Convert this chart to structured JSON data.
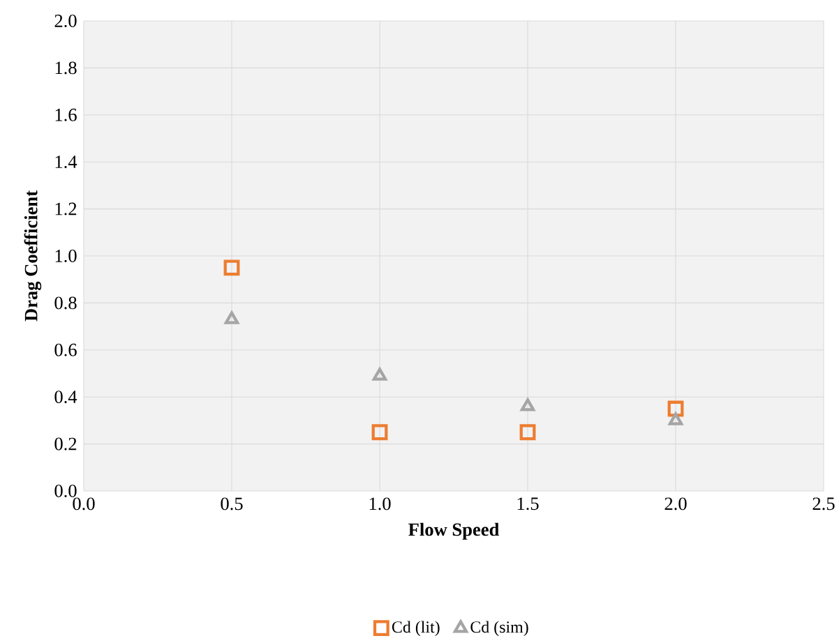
{
  "chart_data": {
    "type": "scatter",
    "xlabel": "Flow Speed",
    "ylabel": "Drag Coefficient",
    "x": [
      0.5,
      1.0,
      1.5,
      2.0
    ],
    "series": [
      {
        "name": "Cd (lit)",
        "color": "#ed7d31",
        "marker": "square",
        "values": [
          0.95,
          0.25,
          0.25,
          0.35
        ]
      },
      {
        "name": "Cd (sim)",
        "color": "#a5a5a5",
        "marker": "triangle",
        "values": [
          0.73,
          0.49,
          0.36,
          0.3
        ]
      }
    ],
    "xlim": [
      0,
      2.5
    ],
    "xticks": [
      {
        "value": 0,
        "label": "0.0"
      },
      {
        "value": 0.5,
        "label": "0.5"
      },
      {
        "value": 1,
        "label": "1.0"
      },
      {
        "value": 1.5,
        "label": "1.5"
      },
      {
        "value": 2,
        "label": "2.0"
      },
      {
        "value": 2.5,
        "label": "2.5"
      }
    ],
    "ylim": [
      0,
      2
    ],
    "yticks": [
      {
        "value": 0,
        "label": "0.0"
      },
      {
        "value": 0.2,
        "label": "0.2"
      },
      {
        "value": 0.4,
        "label": "0.4"
      },
      {
        "value": 0.6,
        "label": "0.6"
      },
      {
        "value": 0.8,
        "label": "0.8"
      },
      {
        "value": 1,
        "label": "1.0"
      },
      {
        "value": 1.2,
        "label": "1.2"
      },
      {
        "value": 1.4,
        "label": "1.4"
      },
      {
        "value": 1.6,
        "label": "1.6"
      },
      {
        "value": 1.8,
        "label": "1.8"
      },
      {
        "value": 2,
        "label": "2.0"
      }
    ],
    "grid": true,
    "legend": "bottom"
  }
}
